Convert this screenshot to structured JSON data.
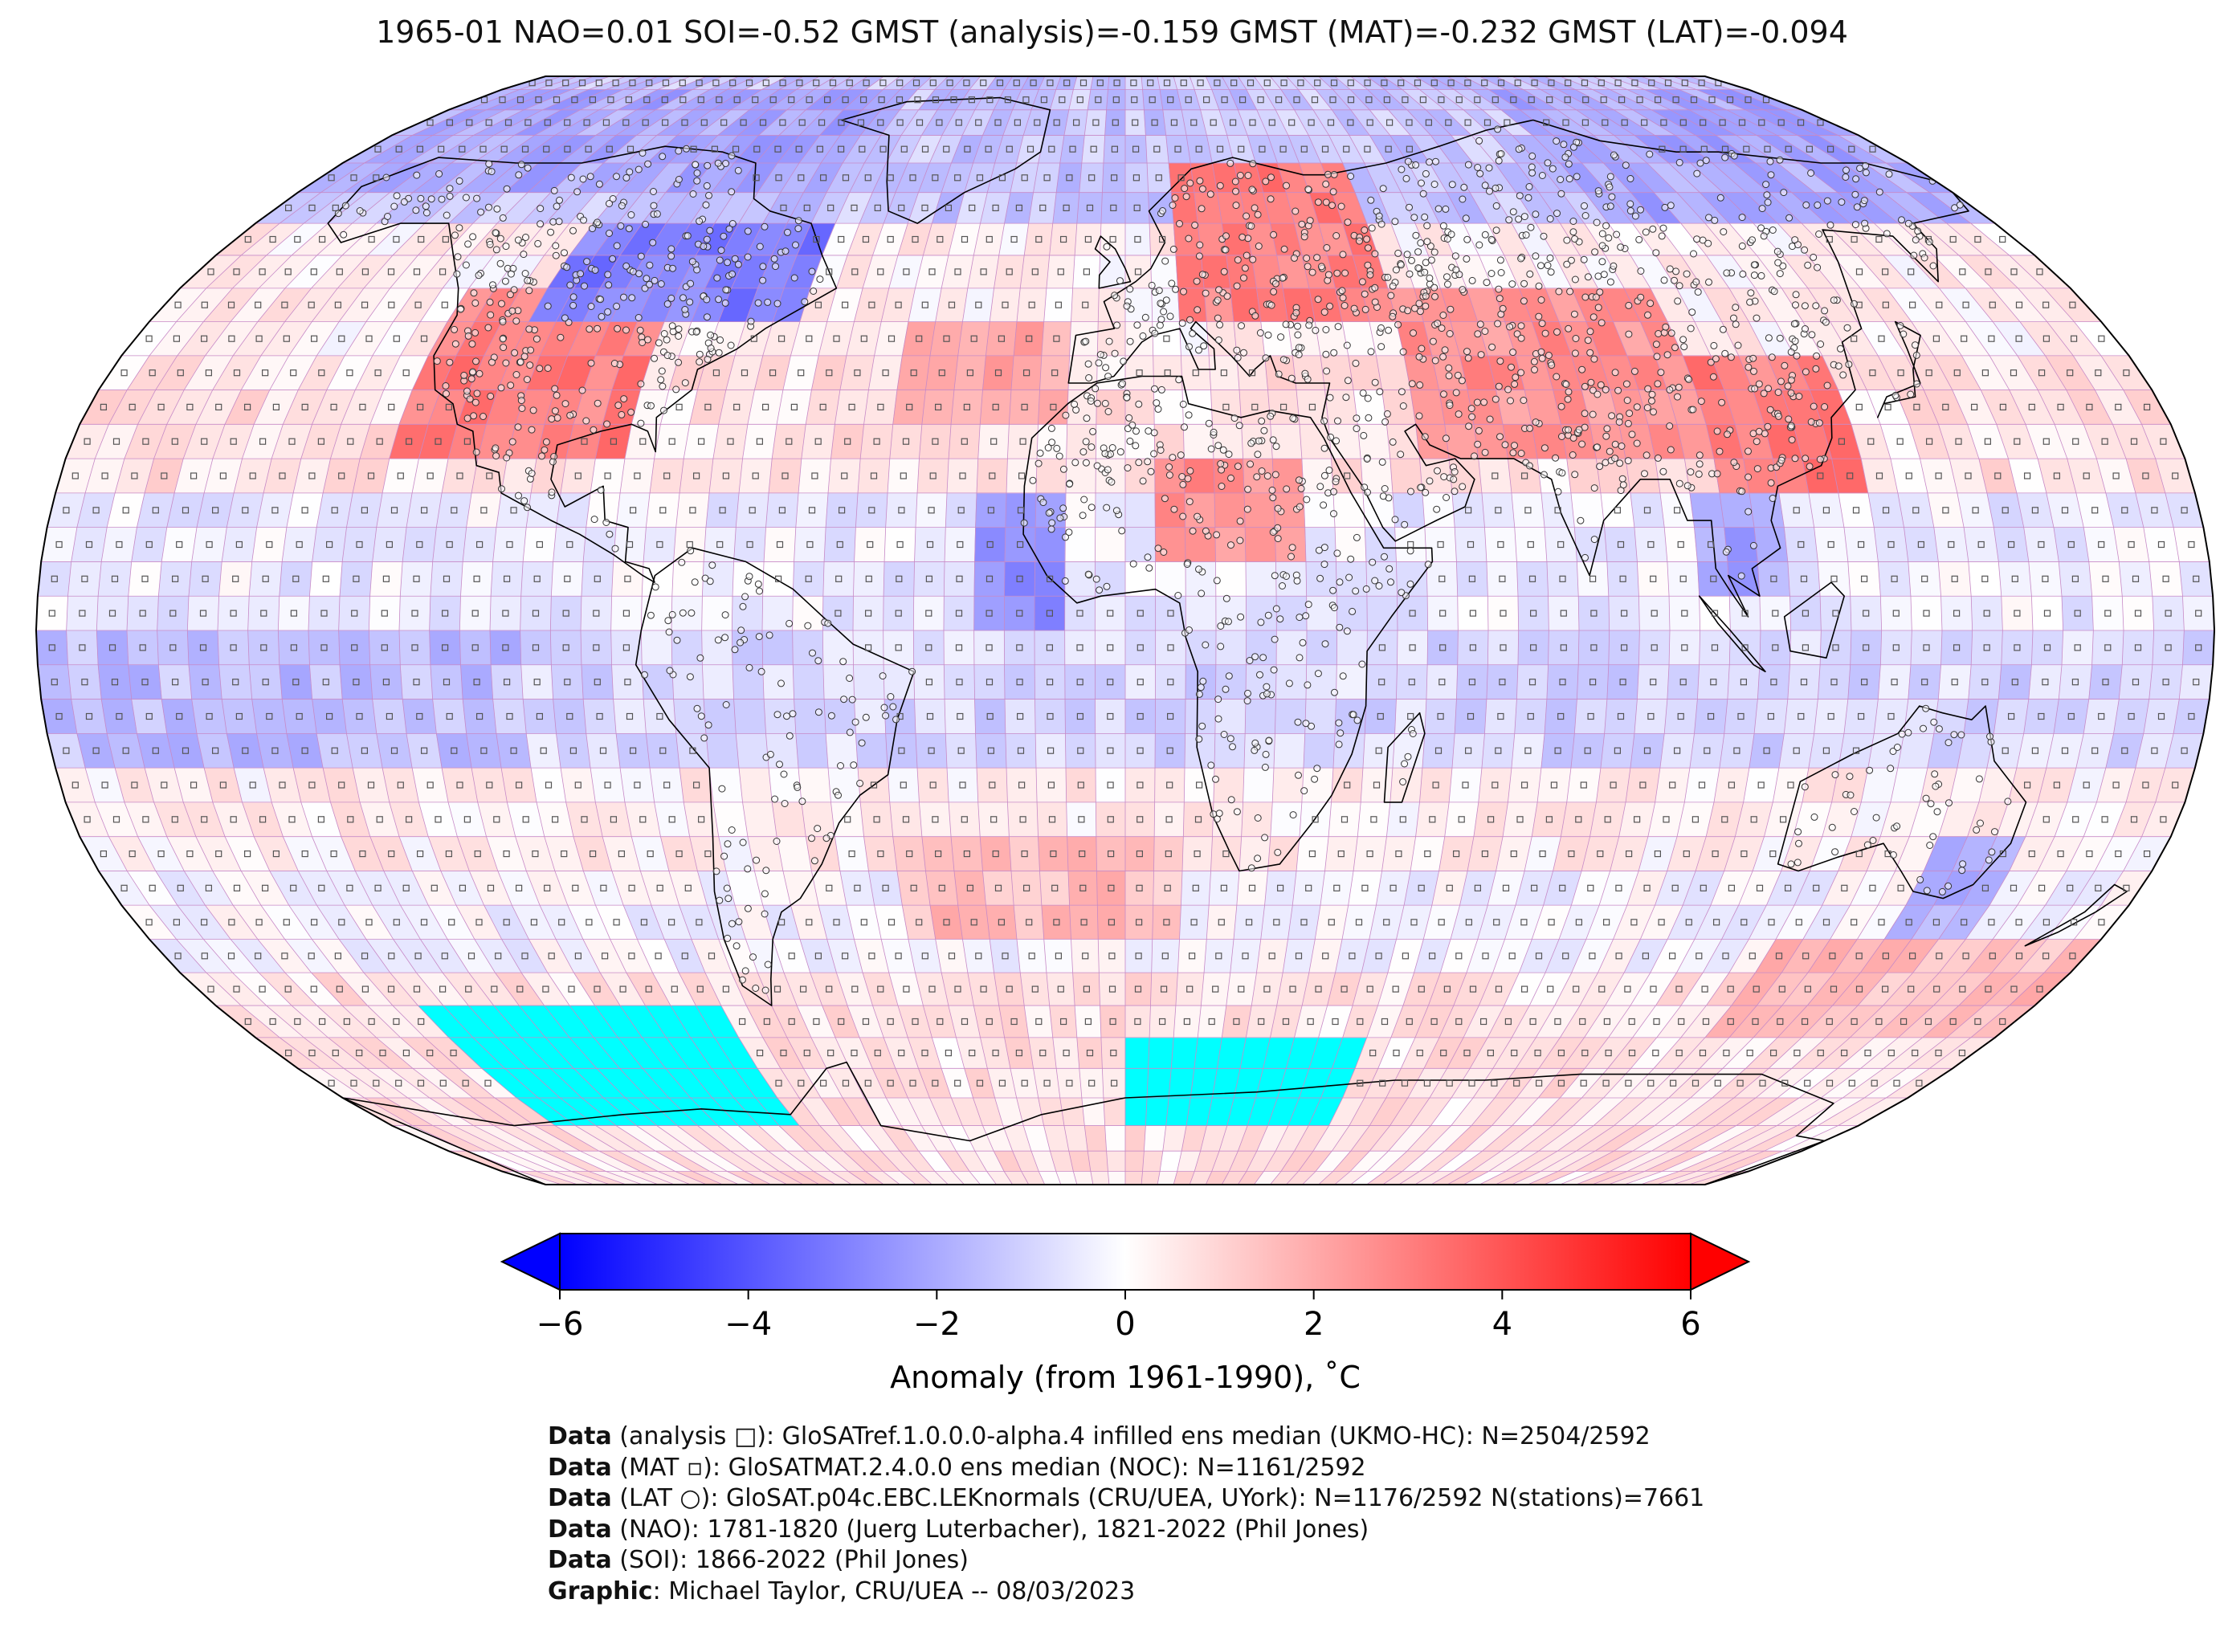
{
  "title": "1965-01 NAO=0.01 SOI=-0.52 GMST (analysis)=-0.159 GMST (MAT)=-0.232 GMST (LAT)=-0.094",
  "map": {
    "projection": "Robinson",
    "grid": "5-degree latitude-longitude cells",
    "masked_color": "#00ffff",
    "cool_color": "#0000ff",
    "warm_color": "#ff0000",
    "neutral_color": "#ffffff",
    "gridline_color": "#c78ac7",
    "station_marker": "small-circle",
    "ocean_marker": "small-square",
    "anomaly_regions": [
      {
        "name": "North America (west/south)",
        "lon": [
          -125,
          -85
        ],
        "lat": [
          25,
          50
        ],
        "anomaly": 3.0
      },
      {
        "name": "Canada / Great Lakes",
        "lon": [
          -110,
          -60
        ],
        "lat": [
          45,
          60
        ],
        "anomaly": -3.0
      },
      {
        "name": "Eastern Europe / Scandinavia",
        "lon": [
          10,
          50
        ],
        "lat": [
          45,
          70
        ],
        "anomaly": 3.0
      },
      {
        "name": "Central Asia",
        "lon": [
          50,
          100
        ],
        "lat": [
          25,
          50
        ],
        "anomaly": 2.5
      },
      {
        "name": "China",
        "lon": [
          100,
          125
        ],
        "lat": [
          20,
          40
        ],
        "anomaly": 3.0
      },
      {
        "name": "Siberia (north-east)",
        "lon": [
          100,
          180
        ],
        "lat": [
          60,
          85
        ],
        "anomaly": -2.0
      },
      {
        "name": "Canadian Arctic",
        "lon": [
          -180,
          -60
        ],
        "lat": [
          65,
          85
        ],
        "anomaly": -2.0
      },
      {
        "name": "Sahara (central)",
        "lon": [
          5,
          30
        ],
        "lat": [
          10,
          25
        ],
        "anomaly": 2.5
      },
      {
        "name": "West Africa coast",
        "lon": [
          -25,
          -10
        ],
        "lat": [
          0,
          20
        ],
        "anomaly": -2.5
      },
      {
        "name": "North Atlantic",
        "lon": [
          -40,
          -10
        ],
        "lat": [
          30,
          45
        ],
        "anomaly": 2.0
      },
      {
        "name": "Indochina",
        "lon": [
          95,
          110
        ],
        "lat": [
          5,
          20
        ],
        "anomaly": -2.0
      },
      {
        "name": "Australia (south-east)",
        "lon": [
          140,
          155
        ],
        "lat": [
          -45,
          -30
        ],
        "anomaly": -2.0
      },
      {
        "name": "South Pacific",
        "lon": [
          -180,
          -100
        ],
        "lat": [
          -20,
          0
        ],
        "anomaly": -1.5
      },
      {
        "name": "South Atlantic",
        "lon": [
          -40,
          10
        ],
        "lat": [
          -45,
          -30
        ],
        "anomaly": 1.5
      },
      {
        "name": "Southern Ocean (east)",
        "lon": [
          120,
          180
        ],
        "lat": [
          -60,
          -45
        ],
        "anomaly": 1.5
      }
    ],
    "masked_regions": [
      {
        "lon": [
          -140,
          -80
        ],
        "lat": [
          -75,
          -55
        ]
      },
      {
        "lon": [
          0,
          50
        ],
        "lat": [
          -75,
          -60
        ]
      }
    ]
  },
  "colorbar": {
    "min": -6,
    "max": 6,
    "extend": "both",
    "ticks": [
      "−6",
      "−4",
      "−2",
      "0",
      "2",
      "4",
      "6"
    ],
    "tick_values": [
      -6,
      -4,
      -2,
      0,
      2,
      4,
      6
    ],
    "label": "Anomaly (from 1961-1990), ˚C"
  },
  "credits": [
    {
      "key": "Data",
      "text": " (analysis □): GloSATref.1.0.0.0-alpha.4 infilled ens median (UKMO-HC): N=2504/2592"
    },
    {
      "key": "Data",
      "text": " (MAT ▫): GloSATMAT.2.4.0.0 ens median (NOC): N=1161/2592"
    },
    {
      "key": "Data",
      "text": " (LAT ○): GloSAT.p04c.EBC.LEKnormals (CRU/UEA, UYork): N=1176/2592 N(stations)=7661"
    },
    {
      "key": "Data",
      "text": " (NAO): 1781-1820 (Juerg Luterbacher), 1821-2022 (Phil Jones)"
    },
    {
      "key": "Data",
      "text": " (SOI): 1866-2022 (Phil Jones)"
    },
    {
      "key": "Graphic",
      "text": ": Michael Taylor, CRU/UEA -- 08/03/2023"
    }
  ]
}
